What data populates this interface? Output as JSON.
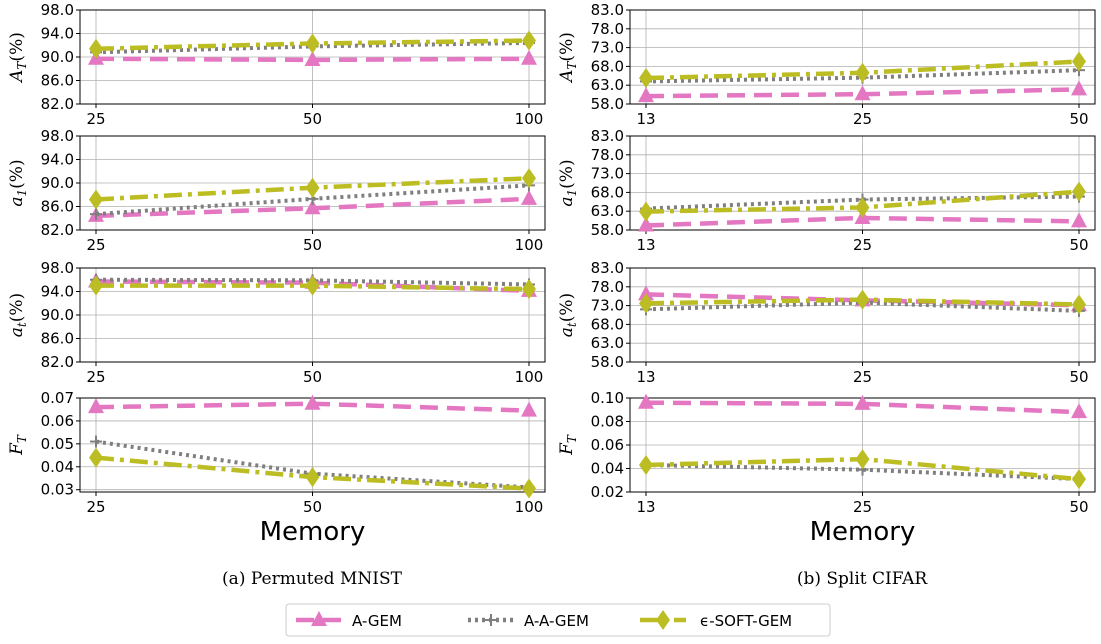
{
  "chart_data": {
    "type": "line",
    "methods": [
      "A-GEM",
      "A-A-GEM",
      "ϵ-SOFT-GEM"
    ],
    "series_styles": [
      {
        "name": "A-GEM",
        "color": "#e377c2",
        "dash": "18,9",
        "marker": "triangle"
      },
      {
        "name": "A-A-GEM",
        "color": "#7f7f7f",
        "dash": "3,4",
        "marker": "plus"
      },
      {
        "name": "ϵ-SOFT-GEM",
        "color": "#bcbd22",
        "dash": "18,6,4,6",
        "marker": "diamond"
      }
    ],
    "legend_position": "bottom-center",
    "grid": true,
    "panels": [
      {
        "caption": "(a) Permuted MNIST",
        "xlabel": "Memory",
        "x": [
          25,
          50,
          100
        ],
        "subplots": [
          {
            "ylabel": "A_T(%)",
            "yticks": [
              "82.0",
              "86.0",
              "90.0",
              "94.0",
              "98.0"
            ],
            "ylim": [
              82,
              98
            ],
            "series": [
              {
                "name": "A-GEM",
                "values": [
                  89.7,
                  89.5,
                  89.7
                ]
              },
              {
                "name": "A-A-GEM",
                "values": [
                  90.8,
                  91.8,
                  92.4
                ]
              },
              {
                "name": "ϵ-SOFT-GEM",
                "values": [
                  91.4,
                  92.3,
                  92.8
                ]
              }
            ]
          },
          {
            "ylabel": "a_1(%)",
            "yticks": [
              "82.0",
              "86.0",
              "90.0",
              "94.0",
              "98.0"
            ],
            "ylim": [
              82,
              98
            ],
            "series": [
              {
                "name": "A-GEM",
                "values": [
                  84.4,
                  85.7,
                  87.3
                ]
              },
              {
                "name": "A-A-GEM",
                "values": [
                  84.7,
                  87.3,
                  89.6
                ]
              },
              {
                "name": "ϵ-SOFT-GEM",
                "values": [
                  87.2,
                  89.2,
                  90.8
                ]
              }
            ]
          },
          {
            "ylabel": "a_t(%)",
            "yticks": [
              "82.0",
              "86.0",
              "90.0",
              "94.0",
              "98.0"
            ],
            "ylim": [
              82,
              98
            ],
            "series": [
              {
                "name": "A-GEM",
                "values": [
                  95.7,
                  95.5,
                  94.1
                ]
              },
              {
                "name": "A-A-GEM",
                "values": [
                  96.0,
                  95.9,
                  95.2
                ]
              },
              {
                "name": "ϵ-SOFT-GEM",
                "values": [
                  95.0,
                  95.0,
                  94.4
                ]
              }
            ]
          },
          {
            "ylabel": "F_T",
            "yticks": [
              "0.03",
              "0.04",
              "0.05",
              "0.06",
              "0.07"
            ],
            "ylim": [
              0.029,
              0.07
            ],
            "series": [
              {
                "name": "A-GEM",
                "values": [
                  0.066,
                  0.0675,
                  0.0645
                ]
              },
              {
                "name": "A-A-GEM",
                "values": [
                  0.051,
                  0.037,
                  0.031
                ]
              },
              {
                "name": "ϵ-SOFT-GEM",
                "values": [
                  0.044,
                  0.0355,
                  0.0305
                ]
              }
            ]
          }
        ]
      },
      {
        "caption": "(b) Split CIFAR",
        "xlabel": "Memory",
        "x": [
          13,
          25,
          50
        ],
        "subplots": [
          {
            "ylabel": "A_T(%)",
            "yticks": [
              "58.0",
              "63.0",
              "68.0",
              "73.0",
              "78.0",
              "83.0"
            ],
            "ylim": [
              58,
              83
            ],
            "series": [
              {
                "name": "A-GEM",
                "values": [
                  60.1,
                  60.6,
                  61.9
                ]
              },
              {
                "name": "A-A-GEM",
                "values": [
                  64.0,
                  65.0,
                  67.0
                ]
              },
              {
                "name": "ϵ-SOFT-GEM",
                "values": [
                  64.9,
                  66.3,
                  69.3
                ]
              }
            ]
          },
          {
            "ylabel": "a_1(%)",
            "yticks": [
              "58.0",
              "63.0",
              "68.0",
              "73.0",
              "78.0",
              "83.0"
            ],
            "ylim": [
              58,
              83
            ],
            "series": [
              {
                "name": "A-GEM",
                "values": [
                  59.2,
                  61.2,
                  60.3
                ]
              },
              {
                "name": "A-A-GEM",
                "values": [
                  63.7,
                  66.1,
                  66.9
                ]
              },
              {
                "name": "ϵ-SOFT-GEM",
                "values": [
                  62.9,
                  64.0,
                  68.2
                ]
              }
            ]
          },
          {
            "ylabel": "a_t(%)",
            "yticks": [
              "58.0",
              "63.0",
              "68.0",
              "73.0",
              "78.0",
              "83.0"
            ],
            "ylim": [
              58,
              83
            ],
            "series": [
              {
                "name": "A-GEM",
                "values": [
                  76.0,
                  74.4,
                  73.1
                ]
              },
              {
                "name": "A-A-GEM",
                "values": [
                  72.0,
                  73.8,
                  71.6
                ]
              },
              {
                "name": "ϵ-SOFT-GEM",
                "values": [
                  73.6,
                  74.6,
                  73.3
                ]
              }
            ]
          },
          {
            "ylabel": "F_T",
            "yticks": [
              "0.02",
              "0.04",
              "0.06",
              "0.08",
              "0.10"
            ],
            "ylim": [
              0.02,
              0.1
            ],
            "series": [
              {
                "name": "A-GEM",
                "values": [
                  0.096,
                  0.095,
                  0.088
                ]
              },
              {
                "name": "A-A-GEM",
                "values": [
                  0.043,
                  0.039,
                  0.031
                ]
              },
              {
                "name": "ϵ-SOFT-GEM",
                "values": [
                  0.043,
                  0.048,
                  0.031
                ]
              }
            ]
          }
        ]
      }
    ]
  }
}
